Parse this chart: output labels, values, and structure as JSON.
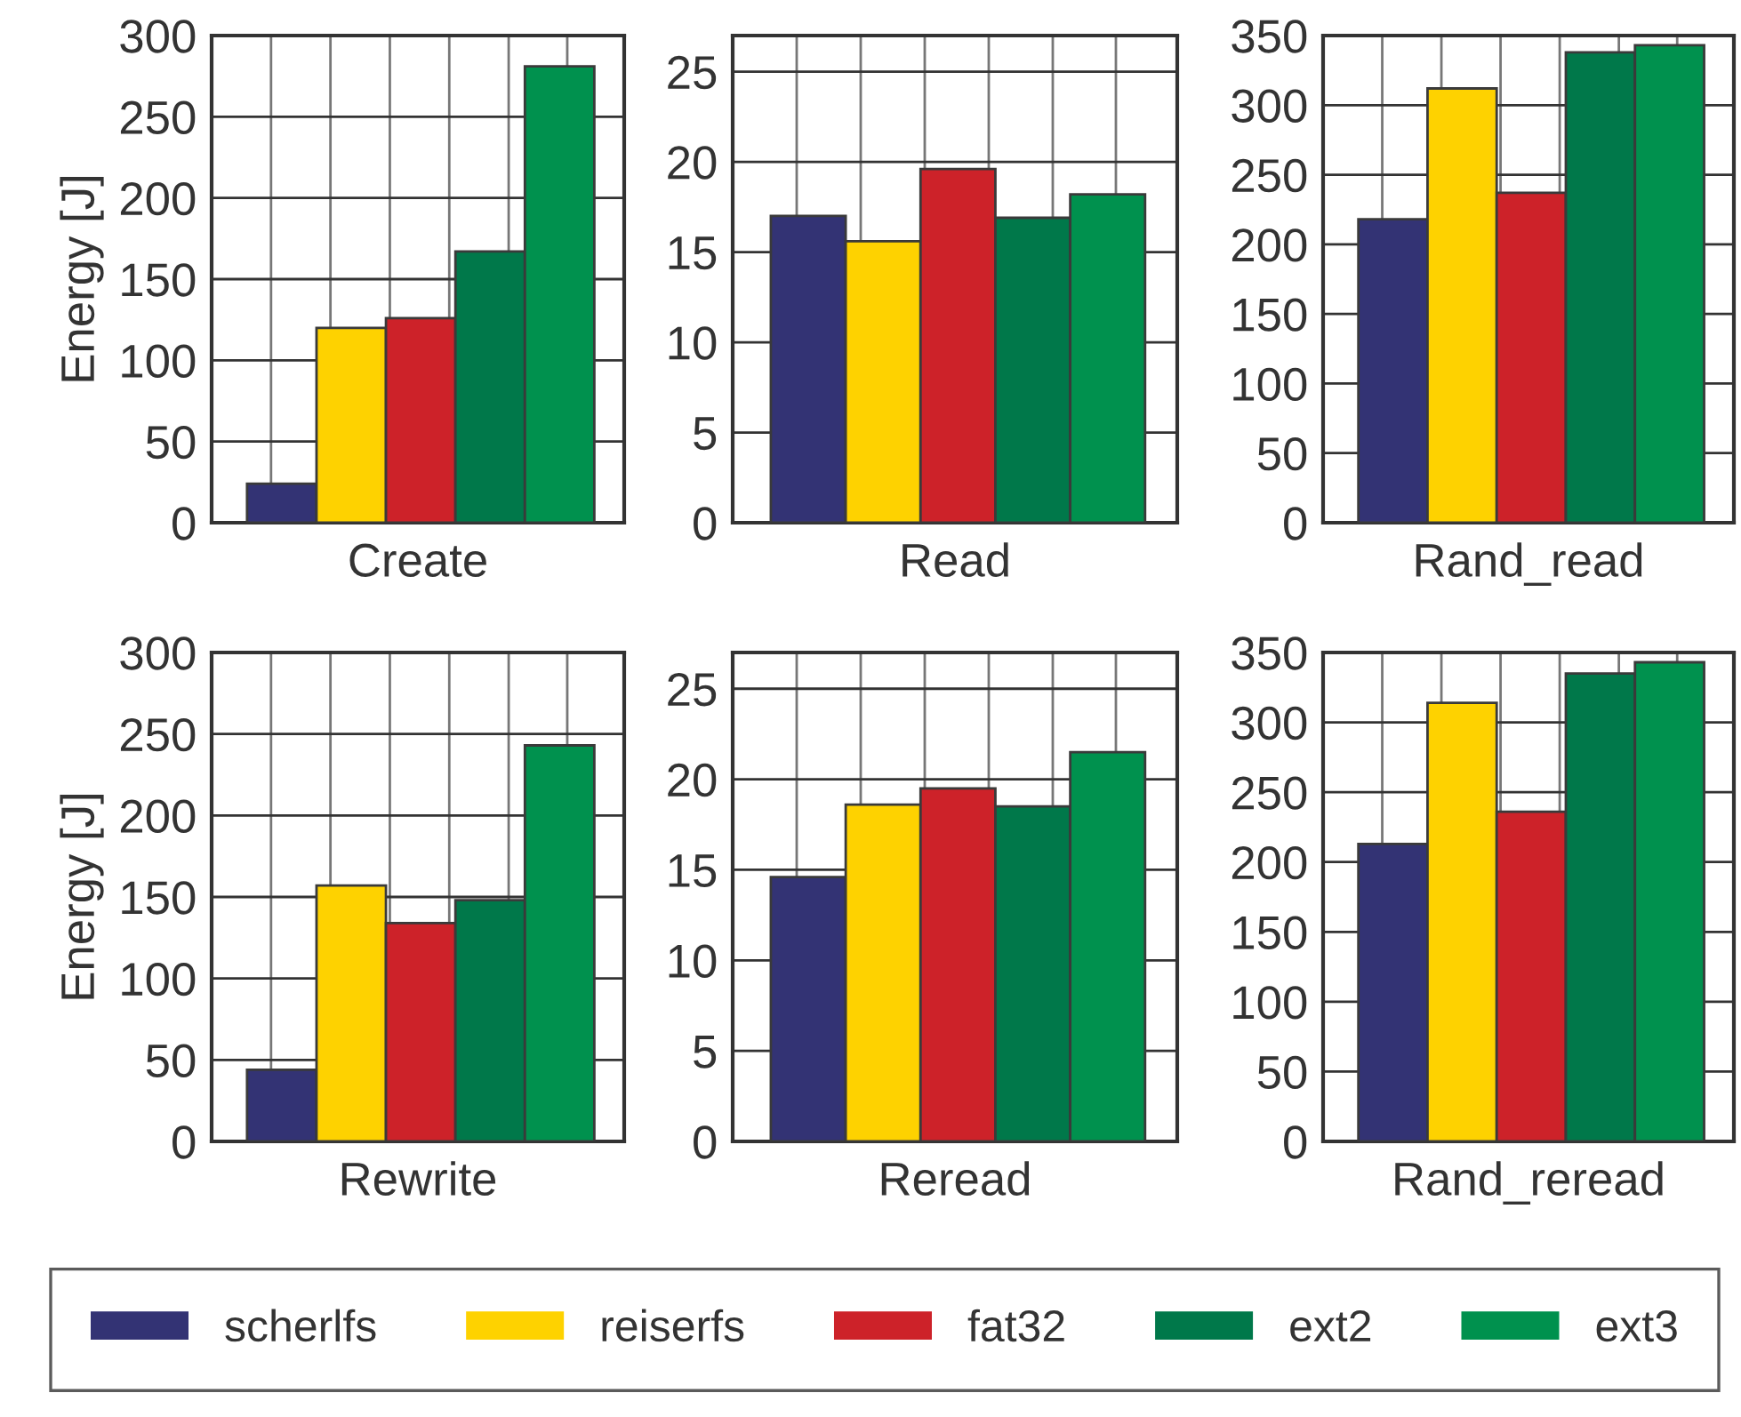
{
  "chart_data": [
    {
      "type": "bar",
      "categories": [
        null
      ],
      "xlabel": "Create",
      "ylabel": "Energy [J]",
      "ylim": [
        0,
        300
      ],
      "yticks": [
        0,
        50,
        100,
        150,
        200,
        250,
        300
      ],
      "grid": true,
      "legend": "bottom",
      "series": [
        {
          "name": "scherlfs",
          "color": "#333374",
          "values": [
            24
          ]
        },
        {
          "name": "reiserfs",
          "color": "#fed200",
          "values": [
            120
          ]
        },
        {
          "name": "fat32",
          "color": "#cd2229",
          "values": [
            126
          ]
        },
        {
          "name": "ext2",
          "color": "#00784a",
          "values": [
            167
          ]
        },
        {
          "name": "ext3",
          "color": "#00914e",
          "values": [
            281
          ]
        }
      ]
    },
    {
      "type": "bar",
      "categories": [
        null,
        null,
        null,
        null,
        null
      ],
      "xlabel": "Read",
      "ylim": [
        0,
        27
      ],
      "yticks": [
        0,
        5,
        10,
        15,
        20,
        25
      ],
      "grid": true,
      "values": [
        17.0,
        15.6,
        19.6,
        16.9,
        18.2
      ],
      "colors": [
        "#333374",
        "#fed200",
        "#cd2229",
        "#00784a",
        "#00914e"
      ]
    },
    {
      "type": "bar",
      "categories": [
        null,
        null,
        null,
        null,
        null
      ],
      "xlabel": "Rand_read",
      "ylim": [
        0,
        350
      ],
      "yticks": [
        0,
        50,
        100,
        150,
        200,
        250,
        300,
        350
      ],
      "grid": true,
      "values": [
        218,
        312,
        237,
        338,
        343
      ],
      "colors": [
        "#333374",
        "#fed200",
        "#cd2229",
        "#00784a",
        "#00914e"
      ]
    },
    {
      "type": "bar",
      "categories": [
        null,
        null,
        null,
        null,
        null
      ],
      "xlabel": "Rewrite",
      "ylabel": "Energy [J]",
      "ylim": [
        0,
        300
      ],
      "yticks": [
        0,
        50,
        100,
        150,
        200,
        250,
        300
      ],
      "grid": true,
      "values": [
        44,
        157,
        134,
        148,
        243
      ],
      "colors": [
        "#333374",
        "#fed200",
        "#cd2229",
        "#00784a",
        "#00914e"
      ]
    },
    {
      "type": "bar",
      "categories": [
        null,
        null,
        null,
        null,
        null
      ],
      "xlabel": "Reread",
      "ylim": [
        0,
        27
      ],
      "yticks": [
        0,
        5,
        10,
        15,
        20,
        25
      ],
      "grid": true,
      "values": [
        14.6,
        18.6,
        19.5,
        18.5,
        21.5
      ],
      "colors": [
        "#333374",
        "#fed200",
        "#cd2229",
        "#00784a",
        "#00914e"
      ]
    },
    {
      "type": "bar",
      "categories": [
        null,
        null,
        null,
        null,
        null
      ],
      "xlabel": "Rand_reread",
      "ylim": [
        0,
        350
      ],
      "yticks": [
        0,
        50,
        100,
        150,
        200,
        250,
        300,
        350
      ],
      "grid": true,
      "values": [
        213,
        314,
        236,
        335,
        343
      ],
      "colors": [
        "#333374",
        "#fed200",
        "#cd2229",
        "#00784a",
        "#00914e"
      ]
    }
  ]
}
